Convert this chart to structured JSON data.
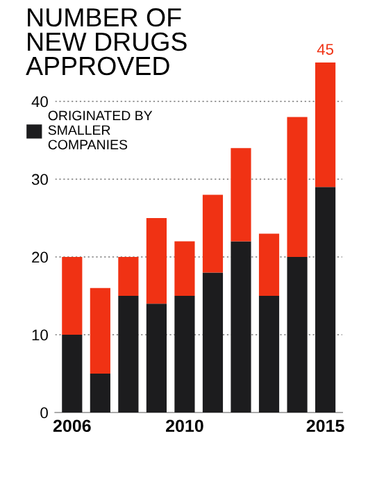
{
  "chart_data": {
    "type": "bar",
    "title": "NUMBER OF\nNEW DRUGS\nAPPROVED",
    "stacked": true,
    "categories": [
      "2006",
      null,
      null,
      null,
      "2010",
      null,
      null,
      null,
      null,
      "2015"
    ],
    "series": [
      {
        "name": "ORIGINATED BY\nSMALLER\nCOMPANIES",
        "color": "#1c1c1e",
        "values": [
          10,
          5,
          15,
          14,
          15,
          18,
          22,
          15,
          20,
          29
        ]
      },
      {
        "color": "#f03214",
        "values": [
          10,
          11,
          5,
          11,
          7,
          10,
          12,
          8,
          18,
          16
        ]
      }
    ],
    "totals": [
      null,
      null,
      null,
      null,
      null,
      null,
      null,
      null,
      null,
      "45"
    ],
    "ylim": [
      0,
      45
    ],
    "yticks": [
      0,
      10,
      20,
      30,
      40
    ],
    "grid": "y",
    "legend": "top left"
  }
}
